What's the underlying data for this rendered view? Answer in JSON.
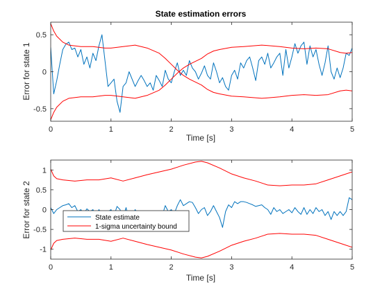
{
  "chart_data": [
    {
      "type": "line",
      "title": "State estimation errors",
      "xlabel": "Time [s]",
      "ylabel": "Error for state 1",
      "xlim": [
        0,
        5
      ],
      "ylim": [
        -0.67,
        0.67
      ],
      "xticks": [
        0,
        1,
        2,
        3,
        4,
        5
      ],
      "yticks": [
        -0.5,
        0,
        0.5
      ],
      "xtick_labels": [
        "0",
        "1",
        "2",
        "3",
        "4",
        "5"
      ],
      "ytick_labels": [
        "-0.5",
        "0",
        "0.5"
      ],
      "grid": false,
      "legend": null,
      "series": [
        {
          "color": "#0072BD",
          "x": [
            0,
            0.05,
            0.1,
            0.15,
            0.2,
            0.25,
            0.3,
            0.35,
            0.4,
            0.45,
            0.5,
            0.55,
            0.6,
            0.65,
            0.7,
            0.75,
            0.8,
            0.85,
            0.9,
            0.95,
            1.0,
            1.05,
            1.1,
            1.15,
            1.2,
            1.25,
            1.3,
            1.35,
            1.4,
            1.45,
            1.5,
            1.55,
            1.6,
            1.65,
            1.7,
            1.75,
            1.8,
            1.85,
            1.9,
            1.95,
            2.0,
            2.05,
            2.1,
            2.15,
            2.2,
            2.25,
            2.3,
            2.35,
            2.4,
            2.45,
            2.5,
            2.55,
            2.6,
            2.65,
            2.7,
            2.75,
            2.8,
            2.85,
            2.9,
            2.95,
            3.0,
            3.05,
            3.1,
            3.15,
            3.2,
            3.25,
            3.3,
            3.35,
            3.4,
            3.45,
            3.5,
            3.55,
            3.6,
            3.65,
            3.7,
            3.75,
            3.8,
            3.85,
            3.9,
            3.95,
            4.0,
            4.05,
            4.1,
            4.15,
            4.2,
            4.25,
            4.3,
            4.35,
            4.4,
            4.45,
            4.5,
            4.55,
            4.6,
            4.65,
            4.7,
            4.75,
            4.8,
            4.85,
            4.9,
            4.95,
            5.0
          ],
          "y": [
            0.33,
            -0.3,
            -0.12,
            0.1,
            0.3,
            0.37,
            0.4,
            0.3,
            0.32,
            0.2,
            0.3,
            0.1,
            0.2,
            0.05,
            0.25,
            0.15,
            0.35,
            0.5,
            0.15,
            -0.2,
            -0.15,
            -0.1,
            -0.4,
            -0.55,
            -0.2,
            -0.15,
            0.0,
            -0.1,
            -0.2,
            -0.12,
            -0.05,
            -0.12,
            -0.2,
            -0.15,
            -0.25,
            -0.05,
            -0.12,
            -0.2,
            0.02,
            -0.1,
            -0.15,
            0.0,
            0.12,
            -0.05,
            0.02,
            -0.05,
            0.15,
            0.05,
            0.0,
            -0.1,
            -0.02,
            0.08,
            -0.05,
            -0.1,
            0.12,
            0.0,
            -0.15,
            -0.08,
            -0.2,
            -0.25,
            -0.05,
            0.02,
            -0.1,
            0.12,
            0.05,
            0.15,
            0.2,
            0.05,
            -0.12,
            0.15,
            0.2,
            0.1,
            0.25,
            0.05,
            0.12,
            0.2,
            0.25,
            -0.05,
            0.3,
            0.05,
            0.2,
            0.38,
            0.25,
            0.35,
            0.4,
            0.1,
            0.35,
            0.2,
            0.3,
            0.1,
            -0.05,
            0.12,
            0.35,
            0.0,
            -0.1,
            0.05,
            -0.08,
            0.05,
            0.25,
            0.22,
            0.32
          ]
        },
        {
          "color": "#FF0000",
          "x": [
            0,
            0.05,
            0.1,
            0.2,
            0.3,
            0.5,
            0.7,
            0.9,
            1.0,
            1.2,
            1.4,
            1.6,
            1.8,
            1.9,
            2.0,
            2.1,
            2.2,
            2.3,
            2.4,
            2.5,
            2.6,
            2.7,
            2.8,
            3.0,
            3.2,
            3.5,
            3.8,
            4.0,
            4.2,
            4.4,
            4.6,
            4.8,
            4.9,
            5.0
          ],
          "y": [
            0.65,
            0.55,
            0.48,
            0.4,
            0.36,
            0.34,
            0.34,
            0.32,
            0.32,
            0.34,
            0.36,
            0.32,
            0.25,
            0.18,
            0.1,
            0.02,
            -0.05,
            -0.1,
            -0.14,
            -0.18,
            -0.24,
            -0.28,
            -0.3,
            -0.33,
            -0.34,
            -0.36,
            -0.34,
            -0.32,
            -0.31,
            -0.32,
            -0.31,
            -0.26,
            -0.25,
            -0.26
          ]
        },
        {
          "color": "#FF0000",
          "x": [
            0,
            0.05,
            0.1,
            0.2,
            0.3,
            0.5,
            0.7,
            0.9,
            1.0,
            1.2,
            1.4,
            1.6,
            1.8,
            1.9,
            2.0,
            2.1,
            2.2,
            2.3,
            2.4,
            2.5,
            2.6,
            2.7,
            2.8,
            3.0,
            3.2,
            3.5,
            3.8,
            4.0,
            4.2,
            4.4,
            4.6,
            4.8,
            4.9,
            5.0
          ],
          "y": [
            -0.65,
            -0.55,
            -0.48,
            -0.4,
            -0.36,
            -0.34,
            -0.34,
            -0.32,
            -0.32,
            -0.34,
            -0.36,
            -0.32,
            -0.25,
            -0.18,
            -0.1,
            -0.02,
            0.05,
            0.1,
            0.14,
            0.18,
            0.24,
            0.28,
            0.3,
            0.33,
            0.34,
            0.36,
            0.34,
            0.32,
            0.31,
            0.32,
            0.31,
            0.26,
            0.25,
            0.26
          ]
        }
      ]
    },
    {
      "type": "line",
      "title": "",
      "xlabel": "Time [s]",
      "ylabel": "Error for state 2",
      "xlim": [
        0,
        5
      ],
      "ylim": [
        -1.25,
        1.25
      ],
      "xticks": [
        0,
        1,
        2,
        3,
        4,
        5
      ],
      "yticks": [
        -1,
        -0.5,
        0,
        0.5,
        1
      ],
      "xtick_labels": [
        "0",
        "1",
        "2",
        "3",
        "4",
        "5"
      ],
      "ytick_labels": [
        "-1",
        "-0.5",
        "0",
        "0.5",
        "1"
      ],
      "grid": false,
      "legend": {
        "placement": "lower-left",
        "entries": [
          "State estimate",
          "1-sigma uncertainty bound"
        ]
      },
      "series": [
        {
          "color": "#0072BD",
          "x": [
            0,
            0.05,
            0.1,
            0.15,
            0.2,
            0.25,
            0.3,
            0.35,
            0.4,
            0.45,
            0.5,
            0.55,
            0.6,
            0.65,
            0.7,
            0.75,
            0.8,
            0.85,
            0.9,
            0.95,
            1.0,
            1.05,
            1.1,
            1.15,
            1.2,
            1.25,
            1.3,
            1.35,
            1.4,
            1.45,
            1.5,
            1.55,
            1.6,
            1.65,
            1.7,
            1.75,
            1.8,
            1.85,
            1.9,
            1.95,
            2.0,
            2.05,
            2.1,
            2.15,
            2.2,
            2.25,
            2.3,
            2.35,
            2.4,
            2.45,
            2.5,
            2.55,
            2.6,
            2.65,
            2.7,
            2.75,
            2.8,
            2.85,
            2.9,
            2.95,
            3.0,
            3.05,
            3.1,
            3.15,
            3.2,
            3.25,
            3.3,
            3.35,
            3.4,
            3.45,
            3.5,
            3.55,
            3.6,
            3.65,
            3.7,
            3.75,
            3.8,
            3.85,
            3.9,
            3.95,
            4.0,
            4.05,
            4.1,
            4.15,
            4.2,
            4.25,
            4.3,
            4.35,
            4.4,
            4.45,
            4.5,
            4.55,
            4.6,
            4.65,
            4.7,
            4.75,
            4.8,
            4.85,
            4.9,
            4.95,
            5.0
          ],
          "y": [
            0.05,
            -0.1,
            0.0,
            0.05,
            0.1,
            0.12,
            0.15,
            0.05,
            0.1,
            -0.05,
            0.0,
            -0.1,
            0.02,
            -0.05,
            0.0,
            -0.12,
            0.0,
            -0.1,
            -0.08,
            -0.05,
            0.0,
            -0.15,
            0.08,
            0.0,
            -0.2,
            0.05,
            -0.3,
            -0.18,
            0.0,
            -0.1,
            -0.05,
            -0.15,
            -0.05,
            -0.2,
            -0.1,
            -0.3,
            -0.2,
            -0.15,
            0.1,
            -0.05,
            0.0,
            -0.1,
            0.1,
            0.25,
            0.1,
            0.15,
            0.2,
            0.18,
            0.05,
            -0.1,
            0.0,
            0.05,
            -0.15,
            -0.05,
            0.1,
            -0.05,
            -0.2,
            -0.45,
            -0.05,
            0.12,
            0.05,
            0.2,
            0.15,
            0.2,
            0.2,
            0.18,
            0.15,
            0.12,
            0.08,
            0.1,
            0.12,
            0.05,
            0.0,
            -0.12,
            0.05,
            -0.05,
            0.0,
            -0.1,
            -0.05,
            0.0,
            -0.08,
            0.05,
            -0.05,
            -0.12,
            0.05,
            -0.12,
            0.0,
            -0.1,
            0.05,
            -0.05,
            0.0,
            -0.15,
            -0.05,
            -0.25,
            -0.05,
            -0.15,
            -0.05,
            -0.15,
            -0.05,
            0.3,
            0.25
          ]
        },
        {
          "color": "#FF0000",
          "x": [
            0,
            0.05,
            0.1,
            0.2,
            0.4,
            0.6,
            0.8,
            1.0,
            1.2,
            1.4,
            1.6,
            1.8,
            2.0,
            2.2,
            2.4,
            2.5,
            2.6,
            2.8,
            3.0,
            3.2,
            3.4,
            3.6,
            3.8,
            4.0,
            4.2,
            4.4,
            4.6,
            4.8,
            5.0
          ],
          "y": [
            1.02,
            0.85,
            0.78,
            0.75,
            0.72,
            0.75,
            0.75,
            0.8,
            0.72,
            0.8,
            0.88,
            0.95,
            1.02,
            1.12,
            1.2,
            1.22,
            1.18,
            1.05,
            0.9,
            0.8,
            0.72,
            0.62,
            0.6,
            0.62,
            0.62,
            0.65,
            0.75,
            0.85,
            0.95
          ]
        },
        {
          "color": "#FF0000",
          "x": [
            0,
            0.05,
            0.1,
            0.2,
            0.4,
            0.6,
            0.8,
            1.0,
            1.2,
            1.4,
            1.6,
            1.8,
            2.0,
            2.2,
            2.4,
            2.5,
            2.6,
            2.8,
            3.0,
            3.2,
            3.4,
            3.6,
            3.8,
            4.0,
            4.2,
            4.4,
            4.6,
            4.8,
            5.0
          ],
          "y": [
            -1.02,
            -0.85,
            -0.78,
            -0.75,
            -0.72,
            -0.75,
            -0.75,
            -0.8,
            -0.72,
            -0.8,
            -0.88,
            -0.95,
            -1.02,
            -1.12,
            -1.2,
            -1.22,
            -1.18,
            -1.05,
            -0.9,
            -0.8,
            -0.72,
            -0.62,
            -0.6,
            -0.62,
            -0.62,
            -0.65,
            -0.75,
            -0.85,
            -0.95
          ]
        }
      ]
    }
  ]
}
